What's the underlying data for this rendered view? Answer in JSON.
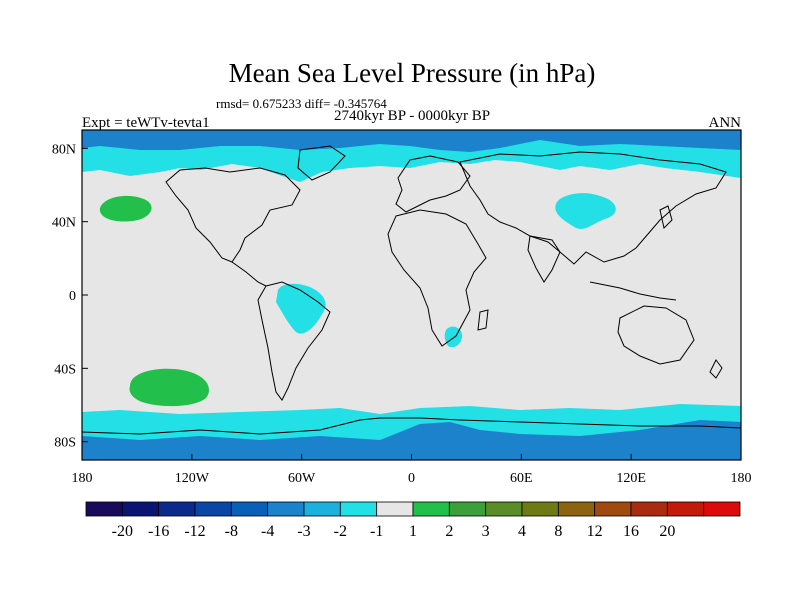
{
  "title": "Mean Sea Level Pressure (in hPa)",
  "stats": "rmsd= 0.675233 diff= -0.345764",
  "period": "2740kyr BP - 0000kyr BP",
  "experiment": "Expt = teWTv-tevta1",
  "season": "ANN",
  "map": {
    "projection": "cylindrical-equidistant",
    "lon_range": [
      -180,
      180
    ],
    "lat_range": [
      -90,
      90
    ],
    "x_ticks": [
      {
        "lon": -180,
        "label": "180"
      },
      {
        "lon": -120,
        "label": "120W"
      },
      {
        "lon": -60,
        "label": "60W"
      },
      {
        "lon": 0,
        "label": "0"
      },
      {
        "lon": 60,
        "label": "60E"
      },
      {
        "lon": 120,
        "label": "120E"
      },
      {
        "lon": 180,
        "label": "180"
      }
    ],
    "y_ticks": [
      {
        "lat": 80,
        "label": "80N"
      },
      {
        "lat": 40,
        "label": "40N"
      },
      {
        "lat": 0,
        "label": "0"
      },
      {
        "lat": -40,
        "label": "40S"
      },
      {
        "lat": -80,
        "label": "80S"
      }
    ],
    "background_color": "#e6e6e6"
  },
  "colorbar": {
    "colors": [
      "#1a0a5c",
      "#0a1473",
      "#0a2b8c",
      "#0a46a6",
      "#0a60b8",
      "#1c82cc",
      "#1cb0dc",
      "#22e0e6",
      "#e6e6e6",
      "#22c04a",
      "#3ca03a",
      "#5a8c2a",
      "#6e7a14",
      "#8c6410",
      "#a04a10",
      "#aa2c10",
      "#c41a0a",
      "#dc0a0a"
    ],
    "labels": [
      "-20",
      "-16",
      "-12",
      "-8",
      "-4",
      "-3",
      "-2",
      "-1",
      "1",
      "2",
      "3",
      "4",
      "8",
      "12",
      "16",
      "20"
    ]
  },
  "contours": [
    {
      "name": "arctic-negative-band",
      "level": "-1",
      "color": "#22e0e6"
    },
    {
      "name": "arctic-deeper-band",
      "level": "-3",
      "color": "#1c82cc"
    },
    {
      "name": "north-pacific-positive",
      "level": "1",
      "color": "#22c04a"
    },
    {
      "name": "south-pacific-positive",
      "level": "1",
      "color": "#22c04a"
    },
    {
      "name": "south-america-negative",
      "level": "-1",
      "color": "#22e0e6"
    },
    {
      "name": "central-asia-negative",
      "level": "-1",
      "color": "#22e0e6"
    },
    {
      "name": "southern-africa-negative",
      "level": "-1",
      "color": "#22e0e6"
    },
    {
      "name": "antarctic-negative-band",
      "level": "-1",
      "color": "#22e0e6"
    },
    {
      "name": "antarctic-deeper-band",
      "level": "-3",
      "color": "#1c82cc"
    }
  ]
}
